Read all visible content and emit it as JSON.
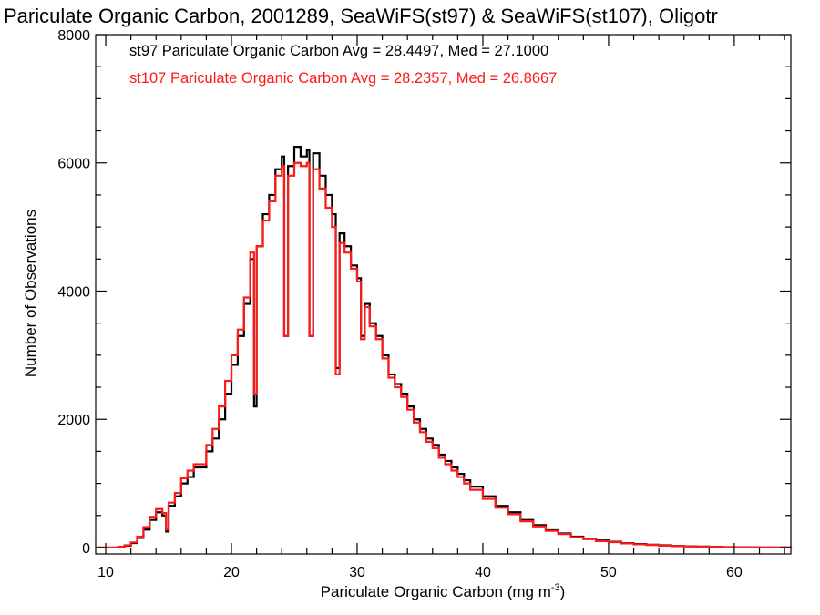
{
  "chart_data": {
    "type": "line",
    "title": "Pariculate Organic Carbon, 2001289, SeaWiFS(st97) & SeaWiFS(st107), Oligotr",
    "xlabel": "Pariculate Organic Carbon (mg m",
    "xlabel_sup": "-3",
    "xlabel_end": ")",
    "ylabel": "Number of Observations",
    "xlim": [
      9.2,
      64.5
    ],
    "ylim": [
      -100,
      8000
    ],
    "x_ticks": [
      10,
      20,
      30,
      40,
      50,
      60
    ],
    "y_ticks": [
      0,
      2000,
      4000,
      6000,
      8000
    ],
    "x_tick_labels": [
      "10",
      "20",
      "30",
      "40",
      "50",
      "60"
    ],
    "y_tick_labels": [
      "0",
      "2000",
      "4000",
      "6000",
      "8000"
    ],
    "grid": false,
    "legend_position": "top-left",
    "series": [
      {
        "name": "st97",
        "label": "st97 Pariculate Organic Carbon Avg = 28.4497, Med = 27.1000",
        "color": "#000000",
        "draw": "step",
        "x": [
          9.2,
          10,
          11,
          11.5,
          12,
          12.5,
          13,
          13.5,
          14,
          14.5,
          14.8,
          15,
          15.5,
          16,
          16.5,
          17,
          17.5,
          18,
          18.5,
          19,
          19.5,
          20,
          20.5,
          21,
          21.5,
          21.8,
          22,
          22.5,
          23,
          23.5,
          24,
          24.2,
          24.5,
          25,
          25.5,
          26,
          26.2,
          26.5,
          27,
          27.5,
          28,
          28.3,
          28.6,
          29,
          29.5,
          30,
          30.3,
          30.6,
          31,
          31.5,
          32,
          32.5,
          33,
          33.5,
          34,
          34.5,
          35,
          35.5,
          36,
          36.5,
          37,
          37.5,
          38,
          38.5,
          39,
          40,
          41,
          42,
          43,
          44,
          45,
          46,
          47,
          48,
          49,
          50,
          51,
          52,
          53,
          54,
          55,
          56,
          57,
          58,
          59,
          60,
          61,
          62,
          63,
          64.5
        ],
        "y": [
          0,
          0,
          10,
          30,
          70,
          150,
          280,
          430,
          550,
          500,
          250,
          650,
          800,
          1000,
          1100,
          1250,
          1250,
          1500,
          1700,
          2000,
          2400,
          2850,
          3300,
          3800,
          4500,
          2200,
          4700,
          5200,
          5500,
          5900,
          6100,
          3300,
          5950,
          6250,
          6100,
          6200,
          3300,
          6150,
          5800,
          5500,
          5200,
          2800,
          4900,
          4700,
          4400,
          4200,
          3300,
          3800,
          3500,
          3300,
          3000,
          2700,
          2550,
          2400,
          2200,
          2000,
          1850,
          1700,
          1600,
          1450,
          1350,
          1250,
          1150,
          1050,
          950,
          800,
          650,
          550,
          430,
          350,
          270,
          220,
          170,
          140,
          110,
          90,
          70,
          55,
          45,
          35,
          25,
          20,
          15,
          10,
          7,
          5,
          3,
          2,
          1,
          0
        ]
      },
      {
        "name": "st107",
        "label": "st107 Pariculate Organic Carbon Avg = 28.2357, Med = 26.8667",
        "color": "#ff1a1a",
        "draw": "step",
        "x": [
          9.2,
          10,
          11,
          11.5,
          12,
          12.5,
          13,
          13.5,
          14,
          14.5,
          14.8,
          15,
          15.5,
          16,
          16.5,
          17,
          17.5,
          18,
          18.5,
          19,
          19.5,
          20,
          20.5,
          21,
          21.5,
          21.8,
          22,
          22.5,
          23,
          23.5,
          24,
          24.2,
          24.5,
          25,
          25.5,
          26,
          26.2,
          26.5,
          27,
          27.5,
          28,
          28.3,
          28.6,
          29,
          29.5,
          30,
          30.3,
          30.6,
          31,
          31.5,
          32,
          32.5,
          33,
          33.5,
          34,
          34.5,
          35,
          35.5,
          36,
          36.5,
          37,
          37.5,
          38,
          38.5,
          39,
          40,
          41,
          42,
          43,
          44,
          45,
          46,
          47,
          48,
          49,
          50,
          51,
          52,
          53,
          54,
          55,
          56,
          57,
          58,
          59,
          60,
          61,
          62,
          63,
          64.5
        ],
        "y": [
          0,
          0,
          12,
          35,
          80,
          170,
          320,
          480,
          600,
          540,
          280,
          700,
          850,
          1080,
          1200,
          1300,
          1300,
          1600,
          1850,
          2200,
          2600,
          3000,
          3400,
          3900,
          4600,
          2400,
          4700,
          5100,
          5400,
          5800,
          5950,
          3300,
          5800,
          6000,
          5950,
          6000,
          3300,
          5900,
          5600,
          5300,
          5000,
          2700,
          4750,
          4600,
          4350,
          4150,
          3250,
          3750,
          3450,
          3250,
          2950,
          2650,
          2500,
          2350,
          2150,
          1950,
          1800,
          1650,
          1550,
          1400,
          1300,
          1200,
          1100,
          1000,
          900,
          760,
          620,
          520,
          410,
          330,
          260,
          210,
          160,
          130,
          100,
          85,
          65,
          50,
          40,
          30,
          22,
          17,
          12,
          8,
          5,
          3,
          2,
          1,
          1,
          0
        ]
      }
    ]
  }
}
